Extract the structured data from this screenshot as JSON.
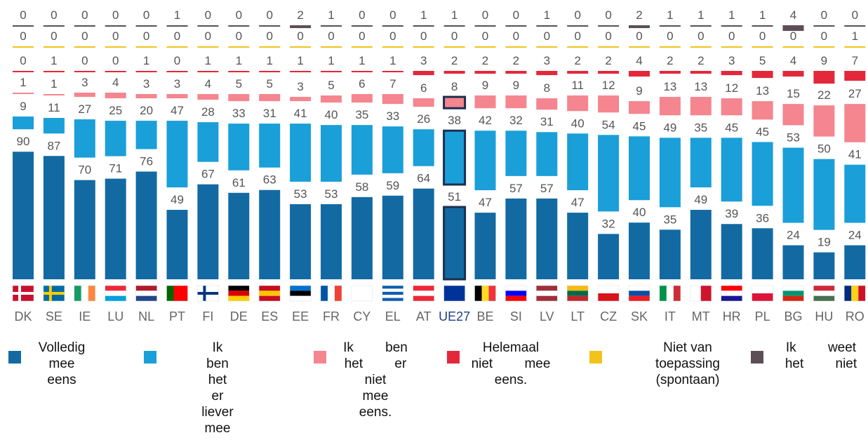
{
  "chart_data": {
    "type": "bar",
    "categories": [
      "DK",
      "SE",
      "IE",
      "LU",
      "NL",
      "PT",
      "FI",
      "DE",
      "ES",
      "EE",
      "FR",
      "CY",
      "EL",
      "AT",
      "UE27",
      "BE",
      "SI",
      "LV",
      "LT",
      "CZ",
      "SK",
      "IT",
      "MT",
      "HR",
      "PL",
      "BG",
      "HU",
      "RO"
    ],
    "series": [
      {
        "name": "Volledig mee eens",
        "color": "#136aa3",
        "values": [
          90,
          87,
          70,
          71,
          76,
          49,
          67,
          61,
          63,
          53,
          53,
          58,
          59,
          64,
          51,
          47,
          57,
          57,
          47,
          32,
          40,
          35,
          49,
          39,
          36,
          24,
          19,
          24
        ]
      },
      {
        "name": "Ik ben het er liever mee eens.",
        "color": "#1a9fd9",
        "values": [
          9,
          11,
          27,
          25,
          20,
          47,
          28,
          33,
          31,
          41,
          40,
          35,
          33,
          26,
          38,
          42,
          32,
          31,
          40,
          54,
          45,
          49,
          35,
          45,
          45,
          53,
          50,
          41
        ]
      },
      {
        "name": "Ik ben het er niet mee eens.",
        "color": "#f5858f",
        "values": [
          1,
          1,
          3,
          4,
          3,
          3,
          4,
          5,
          5,
          3,
          5,
          6,
          7,
          6,
          8,
          9,
          9,
          8,
          11,
          12,
          9,
          13,
          13,
          12,
          13,
          15,
          22,
          27
        ]
      },
      {
        "name": "Helemaal niet mee eens.",
        "color": "#e2283a",
        "values": [
          0,
          1,
          0,
          0,
          1,
          0,
          1,
          1,
          1,
          1,
          1,
          1,
          1,
          3,
          2,
          2,
          2,
          3,
          2,
          2,
          4,
          2,
          2,
          3,
          5,
          4,
          9,
          7
        ]
      },
      {
        "name": "Niet van toepassing (spontaan)",
        "color": "#f3c21b",
        "values": [
          0,
          0,
          0,
          0,
          0,
          0,
          0,
          0,
          0,
          0,
          0,
          0,
          0,
          0,
          0,
          0,
          0,
          0,
          0,
          0,
          0,
          0,
          0,
          0,
          0,
          0,
          0,
          1
        ]
      },
      {
        "name": "Ik weet het niet",
        "color": "#5b4f55",
        "values": [
          0,
          0,
          0,
          0,
          0,
          1,
          0,
          0,
          0,
          2,
          1,
          0,
          0,
          1,
          1,
          0,
          0,
          1,
          0,
          0,
          2,
          1,
          1,
          1,
          1,
          4,
          0,
          0
        ]
      }
    ]
  }
}
